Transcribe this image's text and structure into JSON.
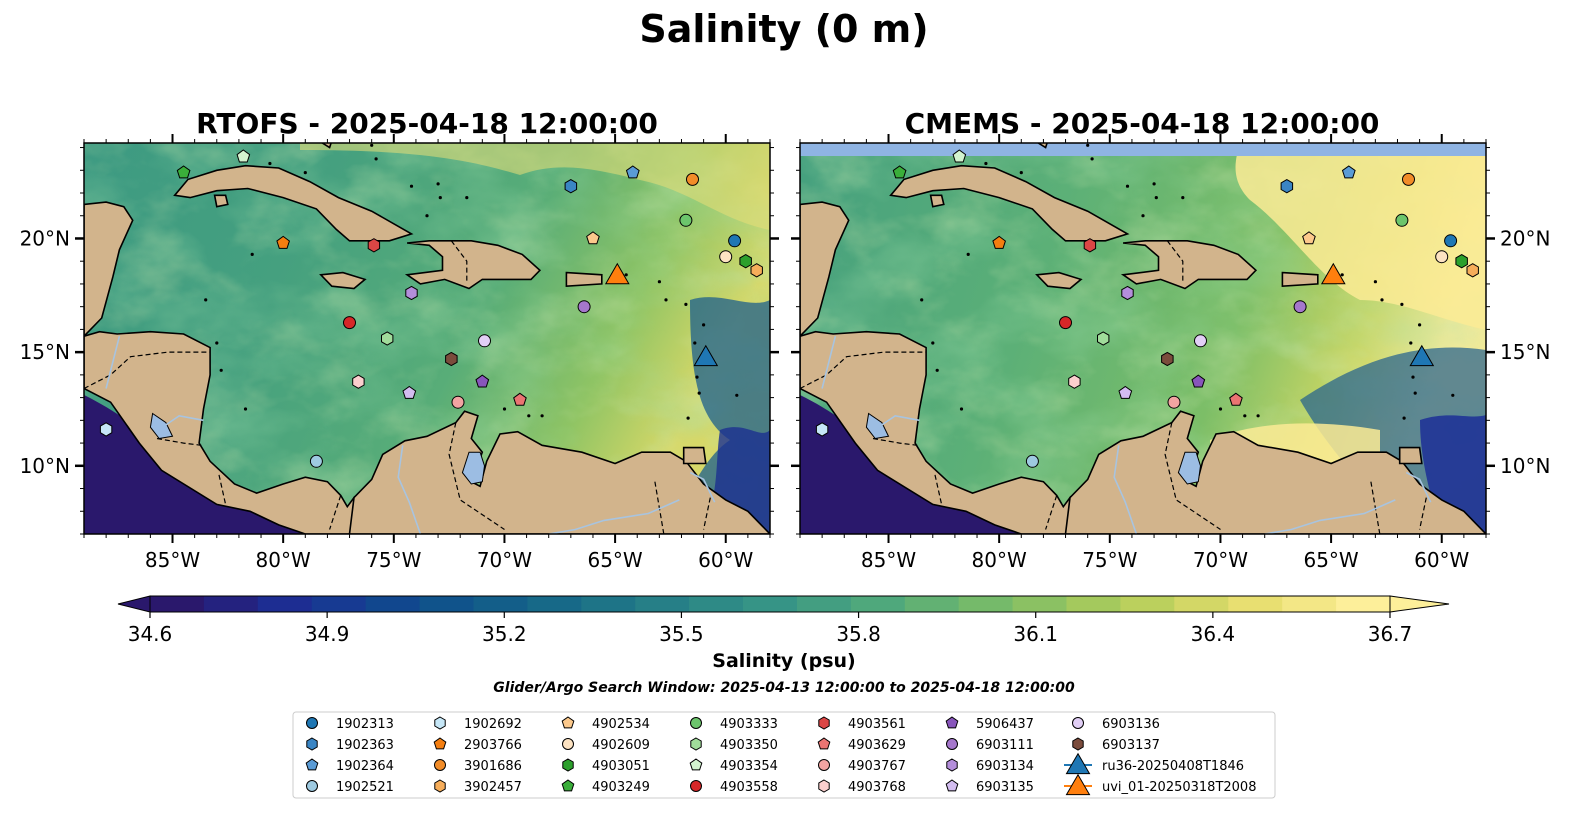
{
  "figure": {
    "title": "Salinity (0 m)",
    "search_window": "Glider/Argo Search Window: 2025-04-13 12:00:00 to 2025-04-18 12:00:00"
  },
  "panels": [
    {
      "title": "RTOFS - 2025-04-18 12:00:00",
      "model": "RTOFS",
      "top_band_missing": false
    },
    {
      "title": "CMEMS - 2025-04-18 12:00:00",
      "model": "CMEMS",
      "top_band_missing": true
    }
  ],
  "map": {
    "lon_range": [
      -89,
      -58
    ],
    "lat_range": [
      7,
      24.2
    ],
    "lon_ticks": [
      -85,
      -80,
      -75,
      -70,
      -65,
      -60
    ],
    "lon_tick_labels": [
      "85°W",
      "80°W",
      "75°W",
      "70°W",
      "65°W",
      "60°W"
    ],
    "lat_ticks": [
      10,
      15,
      20
    ],
    "lat_tick_labels": [
      "10°N",
      "15°N",
      "20°N"
    ],
    "colors": {
      "land": "#d2b48c",
      "lake": "#9cbde3",
      "river": "#a8c4e0",
      "missing": "#8fb4e3",
      "deep_fresh": "#2a186c"
    }
  },
  "colorbar": {
    "label": "Salinity (psu)",
    "min": 34.6,
    "max": 36.7,
    "ticks": [
      34.6,
      34.9,
      35.2,
      35.5,
      35.8,
      36.1,
      36.4,
      36.7
    ],
    "tick_labels": [
      "34.6",
      "34.9",
      "35.2",
      "35.5",
      "35.8",
      "36.1",
      "36.4",
      "36.7"
    ],
    "colormap": "haline",
    "colors": [
      "#2a186c",
      "#1c2f96",
      "#0f4c8c",
      "#146588",
      "#247d87",
      "#369486",
      "#52aa7b",
      "#7dbd66",
      "#b2cd5a",
      "#e6dd6d",
      "#fdef9a"
    ]
  },
  "observations": [
    {
      "id": "1902313",
      "marker": "circle",
      "color": "#1f77b4",
      "lon": -59.6,
      "lat": 19.9
    },
    {
      "id": "1902363",
      "marker": "hexagon",
      "color": "#3a85c4",
      "lon": -67.0,
      "lat": 22.3
    },
    {
      "id": "1902364",
      "marker": "pentagon",
      "color": "#5a9bd5",
      "lon": -64.2,
      "lat": 22.9
    },
    {
      "id": "1902521",
      "marker": "circle",
      "color": "#9ecae1",
      "lon": -78.5,
      "lat": 10.2
    },
    {
      "id": "1902692",
      "marker": "hexagon",
      "color": "#c6e7f7",
      "lon": -88.0,
      "lat": 11.6
    },
    {
      "id": "2903766",
      "marker": "pentagon",
      "color": "#f47e10",
      "lon": -80.0,
      "lat": 19.8
    },
    {
      "id": "3901686",
      "marker": "circle",
      "color": "#f28c28",
      "lon": -61.5,
      "lat": 22.6
    },
    {
      "id": "3902457",
      "marker": "hexagon",
      "color": "#f6ad5a",
      "lon": -58.6,
      "lat": 18.6
    },
    {
      "id": "4902534",
      "marker": "pentagon",
      "color": "#fcc98c",
      "lon": -66.0,
      "lat": 20.0
    },
    {
      "id": "4902609",
      "marker": "circle",
      "color": "#fde3c2",
      "lon": -60.0,
      "lat": 19.2
    },
    {
      "id": "4903051",
      "marker": "hexagon",
      "color": "#2ca02c",
      "lon": -59.1,
      "lat": 19.0
    },
    {
      "id": "4903249",
      "marker": "pentagon",
      "color": "#3aae3a",
      "lon": -84.5,
      "lat": 22.9
    },
    {
      "id": "4903333",
      "marker": "circle",
      "color": "#6cc56c",
      "lon": -61.8,
      "lat": 20.8
    },
    {
      "id": "4903350",
      "marker": "hexagon",
      "color": "#a1dc9b",
      "lon": -75.3,
      "lat": 15.6
    },
    {
      "id": "4903354",
      "marker": "pentagon",
      "color": "#d3f4cf",
      "lon": -81.8,
      "lat": 23.6
    },
    {
      "id": "4903558",
      "marker": "circle",
      "color": "#d62728",
      "lon": -77.0,
      "lat": 16.3
    },
    {
      "id": "4903561",
      "marker": "hexagon",
      "color": "#dc4645",
      "lon": -75.9,
      "lat": 19.7
    },
    {
      "id": "4903629",
      "marker": "pentagon",
      "color": "#ea7472",
      "lon": -69.3,
      "lat": 12.9
    },
    {
      "id": "4903767",
      "marker": "circle",
      "color": "#f2a4a2",
      "lon": -72.1,
      "lat": 12.8
    },
    {
      "id": "4903768",
      "marker": "hexagon",
      "color": "#fbcfce",
      "lon": -76.6,
      "lat": 13.7
    },
    {
      "id": "5906437",
      "marker": "pentagon",
      "color": "#8855bb",
      "lon": -71.0,
      "lat": 13.7
    },
    {
      "id": "6903111",
      "marker": "circle",
      "color": "#a577cc",
      "lon": -66.4,
      "lat": 17.0
    },
    {
      "id": "6903134",
      "marker": "hexagon",
      "color": "#b48edb",
      "lon": -74.2,
      "lat": 17.6
    },
    {
      "id": "6903135",
      "marker": "pentagon",
      "color": "#d3bdf0",
      "lon": -74.3,
      "lat": 13.2
    },
    {
      "id": "6903136",
      "marker": "circle",
      "color": "#e2cff6",
      "lon": -70.9,
      "lat": 15.5
    },
    {
      "id": "6903137",
      "marker": "hexagon",
      "color": "#7b4c3c",
      "lon": -72.4,
      "lat": 14.7
    },
    {
      "id": "ru36-20250408T1846",
      "marker": "triangle",
      "color": "#1f77b4",
      "lon": -60.9,
      "lat": 14.7
    },
    {
      "id": "uvi_01-20250318T2008",
      "marker": "triangle",
      "color": "#ff7f0e",
      "lon": -64.9,
      "lat": 18.3
    }
  ]
}
